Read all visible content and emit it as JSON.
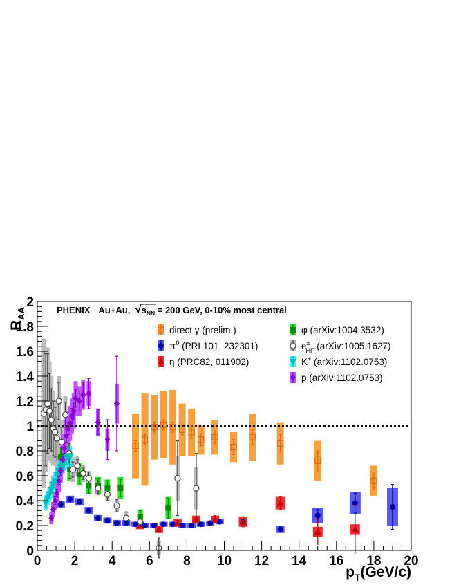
{
  "chart_data": {
    "type": "scatter",
    "title": "PHENIX   Au+Au, √s_NN = 200 GeV, 0-10% most central",
    "title_parts": {
      "experiment": "PHENIX",
      "system": "Au+Au,",
      "sqrt_symbol": "√",
      "s_label": "s",
      "s_subscript": "NN",
      "energy_text": " = 200 GeV, 0-10% most central"
    },
    "xlabel": "p_T(GeV/c)",
    "xlabel_parts": {
      "main": "p",
      "sub": "T",
      "rest": "(GeV/c)"
    },
    "ylabel": "R_AA",
    "ylabel_parts": {
      "main": "R",
      "sub": "AA"
    },
    "xlim": [
      0,
      20
    ],
    "ylim": [
      0,
      2
    ],
    "xticks": [
      0,
      2,
      4,
      6,
      8,
      10,
      12,
      14,
      16,
      18,
      20
    ],
    "xtick_labels": [
      "0",
      "2",
      "4",
      "6",
      "8",
      "10",
      "12",
      "14",
      "16",
      "18",
      "20"
    ],
    "yticks": [
      0,
      0.2,
      0.4,
      0.6,
      0.8,
      1,
      1.2,
      1.4,
      1.6,
      1.8,
      2
    ],
    "ytick_labels": [
      "0",
      "0.2",
      "0.4",
      "0.6",
      "0.8",
      "1",
      "1.2",
      "1.4",
      "1.6",
      "1.8",
      "2"
    ],
    "grid": false,
    "legend_position": "top-right",
    "reference_line": {
      "y": 1,
      "style": "dotted",
      "color": "#000000"
    },
    "series": [
      {
        "name": "direct γ (prelim.)",
        "legend_parts": {
          "main": "direct γ (prelim.)"
        },
        "marker": "open-square",
        "color": "#e06a10",
        "sys_color": "#f5a040",
        "x": [
          5.25,
          5.75,
          6.25,
          6.75,
          7.25,
          7.75,
          8.25,
          8.75,
          9.5,
          10.5,
          11.5,
          13.0,
          15.0,
          18.0
        ],
        "y": [
          0.84,
          0.89,
          0.99,
          1.01,
          0.99,
          0.97,
          0.95,
          0.89,
          0.91,
          0.83,
          0.91,
          0.86,
          0.72,
          0.56
        ],
        "stat": [
          0.04,
          0.04,
          0.04,
          0.04,
          0.04,
          0.04,
          0.05,
          0.05,
          0.05,
          0.06,
          0.06,
          0.07,
          0.08,
          0.07
        ],
        "sys": [
          0.26,
          0.37,
          0.26,
          0.27,
          0.3,
          0.21,
          0.19,
          0.12,
          0.14,
          0.12,
          0.19,
          0.17,
          0.16,
          0.12
        ]
      },
      {
        "name": "π0 (PRL101, 232301)",
        "legend_parts": {
          "main": "π",
          "sup": "0",
          "rest": " (PRL101, 232301)"
        },
        "marker": "filled-circle",
        "color": "#0000aa",
        "sys_color": "#5a5ae8",
        "x": [
          1.25,
          1.75,
          2.25,
          2.75,
          3.25,
          3.75,
          4.25,
          4.75,
          5.25,
          5.75,
          6.25,
          6.75,
          7.25,
          7.75,
          8.25,
          8.75,
          9.25,
          9.75,
          11.0,
          13.0,
          15.0,
          17.0,
          19.0
        ],
        "y": [
          0.37,
          0.41,
          0.39,
          0.32,
          0.26,
          0.24,
          0.22,
          0.22,
          0.21,
          0.2,
          0.2,
          0.21,
          0.21,
          0.2,
          0.2,
          0.21,
          0.22,
          0.23,
          0.23,
          0.17,
          0.28,
          0.38,
          0.35
        ],
        "stat": [
          0.01,
          0.01,
          0.01,
          0.01,
          0.01,
          0.01,
          0.01,
          0.01,
          0.01,
          0.01,
          0.01,
          0.01,
          0.01,
          0.01,
          0.01,
          0.01,
          0.01,
          0.01,
          0.02,
          0.02,
          0.05,
          0.08,
          0.18
        ],
        "sys": [
          0.03,
          0.03,
          0.03,
          0.03,
          0.025,
          0.025,
          0.025,
          0.025,
          0.02,
          0.02,
          0.02,
          0.02,
          0.02,
          0.02,
          0.02,
          0.02,
          0.02,
          0.02,
          0.03,
          0.03,
          0.06,
          0.09,
          0.15
        ]
      },
      {
        "name": "η (PRC82, 011902)",
        "legend_parts": {
          "main": "η (PRC82, 011902)"
        },
        "marker": "filled-triangle",
        "color": "#cc0000",
        "sys_color": "#e63030",
        "x": [
          5.5,
          6.5,
          7.5,
          8.5,
          9.5,
          11.0,
          13.0,
          15.0,
          17.0
        ],
        "y": [
          0.2,
          0.17,
          0.22,
          0.25,
          0.25,
          0.23,
          0.38,
          0.15,
          0.17
        ],
        "stat": [
          0.02,
          0.02,
          0.02,
          0.02,
          0.03,
          0.04,
          0.05,
          0.1,
          0.19
        ],
        "sys": [
          0.03,
          0.03,
          0.03,
          0.03,
          0.03,
          0.04,
          0.05,
          0.04,
          0.04
        ]
      },
      {
        "name": "φ (arXiv:1004.3532)",
        "legend_parts": {
          "main": "φ (arXiv:1004.3532)"
        },
        "marker": "filled-square",
        "color": "#008800",
        "sys_color": "#33dd33",
        "x": [
          1.25,
          1.75,
          2.25,
          2.75,
          3.25,
          3.75,
          4.45,
          5.5,
          7.0
        ],
        "y": [
          0.75,
          0.65,
          0.61,
          0.52,
          0.52,
          0.5,
          0.5,
          0.27,
          0.34
        ],
        "stat": [
          0.08,
          0.07,
          0.07,
          0.06,
          0.06,
          0.06,
          0.07,
          0.05,
          0.08
        ],
        "sys": [
          0.1,
          0.09,
          0.09,
          0.07,
          0.07,
          0.07,
          0.09,
          0.06,
          0.09
        ]
      },
      {
        "name": "e±HF (arXiv:1005.1627)",
        "legend_parts": {
          "main": "e",
          "sup": "±",
          "sub": "HF",
          "rest": " (arXiv:1005.1627)"
        },
        "marker": "open-circle",
        "color": "#444444",
        "sys_color": "#bbbbbb",
        "x": [
          0.35,
          0.45,
          0.55,
          0.65,
          0.75,
          0.85,
          0.95,
          1.05,
          1.15,
          1.3,
          1.5,
          1.7,
          1.9,
          2.15,
          2.45,
          2.75,
          3.25,
          3.75,
          4.25,
          4.75,
          5.5,
          6.5,
          7.5,
          8.5
        ],
        "y": [
          1.1,
          1.13,
          1.18,
          1.12,
          1.05,
          0.98,
          0.95,
          0.9,
          1.2,
          0.87,
          1.09,
          0.78,
          0.65,
          0.68,
          0.62,
          0.58,
          0.5,
          0.45,
          0.36,
          0.26,
          0.23,
          0.02,
          0.58,
          0.5
        ],
        "stat": [
          0.5,
          0.45,
          0.4,
          0.3,
          0.25,
          0.22,
          0.2,
          0.18,
          0.15,
          0.12,
          0.1,
          0.08,
          0.06,
          0.05,
          0.05,
          0.05,
          0.05,
          0.05,
          0.05,
          0.05,
          0.05,
          0.08,
          0.3,
          0.28
        ],
        "sys": [
          0.6,
          0.5,
          0.45,
          0.4,
          0.35,
          0.3,
          0.25,
          0.22,
          0.2,
          0.18,
          0.15,
          0.12,
          0.1,
          0.08,
          0.07,
          0.06,
          0.05,
          0.05,
          0.05,
          0.05,
          0.05,
          0.06,
          0.18,
          0.17
        ]
      },
      {
        "name": "K+ (arXiv:1102.0753)",
        "legend_parts": {
          "main": "K",
          "sup": "+",
          "rest": " (arXiv:1102.0753)"
        },
        "marker": "filled-inverted-triangle",
        "color": "#00bbbb",
        "sys_color": "#44eeee",
        "x": [
          0.45,
          0.55,
          0.65,
          0.75,
          0.85,
          0.95,
          1.05,
          1.15,
          1.25,
          1.35,
          1.45,
          1.55,
          1.65,
          1.75
        ],
        "y": [
          0.38,
          0.42,
          0.45,
          0.49,
          0.53,
          0.56,
          0.61,
          0.64,
          0.67,
          0.7,
          0.72,
          0.74,
          0.76,
          0.75
        ],
        "stat": [
          0.03,
          0.03,
          0.03,
          0.03,
          0.03,
          0.04,
          0.04,
          0.04,
          0.04,
          0.05,
          0.05,
          0.05,
          0.06,
          0.06
        ],
        "sys": [
          0.06,
          0.06,
          0.06,
          0.07,
          0.07,
          0.07,
          0.07,
          0.08,
          0.08,
          0.08,
          0.08,
          0.09,
          0.09,
          0.09
        ]
      },
      {
        "name": "p (arXiv:1102.0753)",
        "legend_parts": {
          "main": "p (arXiv:1102.0753)"
        },
        "marker": "filled-diamond",
        "color": "#8800cc",
        "sys_color": "#bb55ff",
        "x": [
          0.75,
          0.85,
          0.95,
          1.05,
          1.15,
          1.25,
          1.35,
          1.45,
          1.55,
          1.65,
          1.75,
          1.85,
          1.95,
          2.05,
          2.25,
          2.45,
          2.75,
          3.25,
          3.75,
          4.25
        ],
        "y": [
          0.26,
          0.33,
          0.4,
          0.46,
          0.56,
          0.64,
          0.73,
          0.82,
          0.92,
          0.98,
          1.02,
          1.08,
          1.12,
          1.22,
          1.2,
          1.25,
          1.26,
          1.03,
          0.89,
          1.18
        ],
        "stat": [
          0.02,
          0.02,
          0.03,
          0.03,
          0.03,
          0.04,
          0.04,
          0.04,
          0.05,
          0.05,
          0.06,
          0.06,
          0.07,
          0.07,
          0.08,
          0.1,
          0.12,
          0.1,
          0.16,
          0.38
        ],
        "sys": [
          0.05,
          0.06,
          0.07,
          0.08,
          0.09,
          0.1,
          0.11,
          0.12,
          0.13,
          0.14,
          0.14,
          0.14,
          0.14,
          0.14,
          0.12,
          0.12,
          0.1,
          0.11,
          0.09,
          0.16
        ]
      }
    ]
  }
}
